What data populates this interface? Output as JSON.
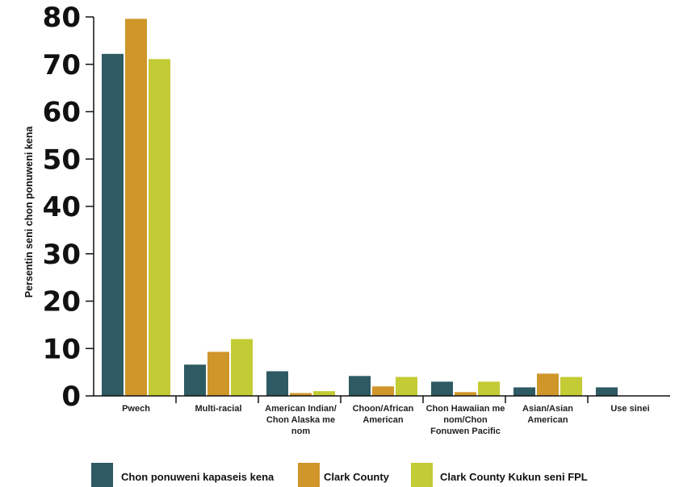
{
  "chart_data": {
    "type": "bar",
    "title": "",
    "xlabel": "",
    "ylabel": "Persentin seni chon ponuweni kena",
    "ylim": [
      0,
      80
    ],
    "yticks": [
      "0",
      "10",
      "20",
      "30",
      "40",
      "50",
      "60",
      "70",
      "80"
    ],
    "grid": false,
    "legend_position": "bottom",
    "categories": [
      [
        "Pwech"
      ],
      [
        "Multi-racial"
      ],
      [
        "American Indian/",
        "Chon Alaska me",
        "nom"
      ],
      [
        "Choon/African",
        "American"
      ],
      [
        "Chon Hawaiian me",
        "nom/Chon",
        "Fonuwen Pacific"
      ],
      [
        "Asian/Asian",
        "American"
      ],
      [
        "Use sinei"
      ]
    ],
    "series": [
      {
        "name": "Chon ponuweni kapaseis kena",
        "color": "#2e5a63",
        "values": [
          72.2,
          6.6,
          5.2,
          4.2,
          3.0,
          1.8,
          1.8
        ]
      },
      {
        "name": "Clark County",
        "color": "#d0962a",
        "values": [
          79.6,
          9.3,
          0.6,
          2.0,
          0.8,
          4.7,
          0
        ]
      },
      {
        "name": "Clark County Kukun seni FPL",
        "color": "#c3cb35",
        "values": [
          71.1,
          12.0,
          1.0,
          4.0,
          3.0,
          4.0,
          0
        ]
      }
    ]
  }
}
